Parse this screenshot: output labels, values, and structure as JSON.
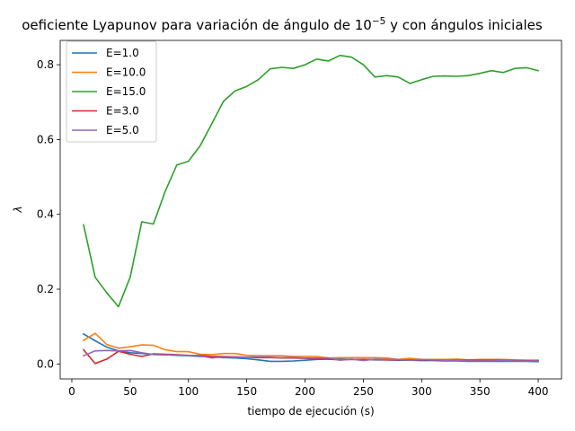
{
  "chart_data": {
    "type": "line",
    "title": "oeficiente Lyapunov para variación de ángulo de 10",
    "title_exponent": "−5",
    "title_suffix": " y con ángulos iniciales",
    "xlabel": "tiempo de ejecución (s)",
    "ylabel": "λ",
    "xlim": [
      -10,
      420
    ],
    "ylim": [
      -0.04,
      0.865
    ],
    "xticks": [
      0,
      50,
      100,
      150,
      200,
      250,
      300,
      350,
      400
    ],
    "yticks": [
      0.0,
      0.2,
      0.4,
      0.6,
      0.8
    ],
    "ytick_labels": [
      "0.0",
      "0.2",
      "0.4",
      "0.6",
      "0.8"
    ],
    "grid": false,
    "legend_position": "top-left",
    "x": [
      10,
      20,
      30,
      40,
      50,
      60,
      70,
      80,
      90,
      100,
      110,
      120,
      130,
      140,
      150,
      160,
      170,
      180,
      190,
      200,
      210,
      220,
      230,
      240,
      250,
      260,
      270,
      280,
      290,
      300,
      310,
      320,
      330,
      340,
      350,
      360,
      370,
      380,
      390,
      400
    ],
    "series": [
      {
        "name": "E=1.0",
        "color": "#1f77b4",
        "values": [
          0.08,
          0.062,
          0.045,
          0.035,
          0.03,
          0.028,
          0.026,
          0.025,
          0.023,
          0.022,
          0.02,
          0.019,
          0.017,
          0.016,
          0.014,
          0.011,
          0.007,
          0.007,
          0.008,
          0.01,
          0.012,
          0.013,
          0.013,
          0.012,
          0.012,
          0.011,
          0.011,
          0.01,
          0.01,
          0.009,
          0.009,
          0.008,
          0.008,
          0.007,
          0.007,
          0.007,
          0.007,
          0.007,
          0.007,
          0.006
        ]
      },
      {
        "name": "E=10.0",
        "color": "#ff7f0e",
        "values": [
          0.063,
          0.082,
          0.052,
          0.042,
          0.046,
          0.051,
          0.05,
          0.038,
          0.033,
          0.033,
          0.026,
          0.025,
          0.028,
          0.028,
          0.023,
          0.022,
          0.022,
          0.022,
          0.02,
          0.02,
          0.02,
          0.016,
          0.017,
          0.017,
          0.017,
          0.017,
          0.016,
          0.012,
          0.015,
          0.012,
          0.012,
          0.012,
          0.013,
          0.011,
          0.012,
          0.012,
          0.012,
          0.011,
          0.01,
          0.01
        ]
      },
      {
        "name": "E=15.0",
        "color": "#2ca02c",
        "values": [
          0.372,
          0.232,
          0.19,
          0.153,
          0.232,
          0.38,
          0.374,
          0.461,
          0.532,
          0.542,
          0.583,
          0.642,
          0.702,
          0.73,
          0.742,
          0.76,
          0.789,
          0.793,
          0.79,
          0.8,
          0.815,
          0.81,
          0.825,
          0.82,
          0.8,
          0.767,
          0.771,
          0.767,
          0.75,
          0.76,
          0.769,
          0.77,
          0.769,
          0.771,
          0.777,
          0.784,
          0.779,
          0.79,
          0.792,
          0.784
        ]
      },
      {
        "name": "E=3.0",
        "color": "#d62728",
        "values": [
          0.038,
          0.001,
          0.013,
          0.034,
          0.026,
          0.02,
          0.027,
          0.026,
          0.025,
          0.023,
          0.023,
          0.02,
          0.02,
          0.019,
          0.018,
          0.017,
          0.017,
          0.016,
          0.016,
          0.015,
          0.014,
          0.013,
          0.011,
          0.012,
          0.012,
          0.012,
          0.011,
          0.011,
          0.011,
          0.011,
          0.011,
          0.01,
          0.01,
          0.01,
          0.01,
          0.01,
          0.01,
          0.009,
          0.009,
          0.009
        ]
      },
      {
        "name": "E=5.0",
        "color": "#9467bd",
        "values": [
          0.022,
          0.035,
          0.036,
          0.035,
          0.036,
          0.03,
          0.025,
          0.024,
          0.024,
          0.023,
          0.022,
          0.016,
          0.019,
          0.018,
          0.018,
          0.019,
          0.018,
          0.017,
          0.018,
          0.016,
          0.016,
          0.016,
          0.01,
          0.013,
          0.009,
          0.013,
          0.012,
          0.012,
          0.01,
          0.012,
          0.011,
          0.01,
          0.009,
          0.008,
          0.008,
          0.008,
          0.009,
          0.008,
          0.008,
          0.008
        ]
      }
    ]
  }
}
